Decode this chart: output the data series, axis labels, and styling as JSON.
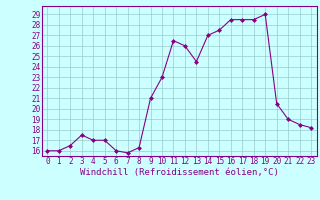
{
  "x": [
    0,
    1,
    2,
    3,
    4,
    5,
    6,
    7,
    8,
    9,
    10,
    11,
    12,
    13,
    14,
    15,
    16,
    17,
    18,
    19,
    20,
    21,
    22,
    23
  ],
  "y": [
    16,
    16,
    16.5,
    17.5,
    17,
    17,
    16,
    15.8,
    16.3,
    21,
    23,
    26.5,
    26,
    24.5,
    27,
    27.5,
    28.5,
    28.5,
    28.5,
    29,
    20.5,
    19,
    18.5,
    18.2
  ],
  "line_color": "#880088",
  "marker": "D",
  "marker_size": 2,
  "bg_color": "#ccffff",
  "grid_color": "#99cccc",
  "xlabel": "Windchill (Refroidissement éolien,°C)",
  "xlabel_fontsize": 6.5,
  "ylim": [
    15.5,
    29.8
  ],
  "xlim": [
    -0.5,
    23.5
  ],
  "yticks": [
    16,
    17,
    18,
    19,
    20,
    21,
    22,
    23,
    24,
    25,
    26,
    27,
    28,
    29
  ],
  "xticks": [
    0,
    1,
    2,
    3,
    4,
    5,
    6,
    7,
    8,
    9,
    10,
    11,
    12,
    13,
    14,
    15,
    16,
    17,
    18,
    19,
    20,
    21,
    22,
    23
  ],
  "tick_fontsize": 5.5,
  "tick_color": "#880088",
  "spine_color": "#880088",
  "fig_width": 3.2,
  "fig_height": 2.0,
  "dpi": 100
}
